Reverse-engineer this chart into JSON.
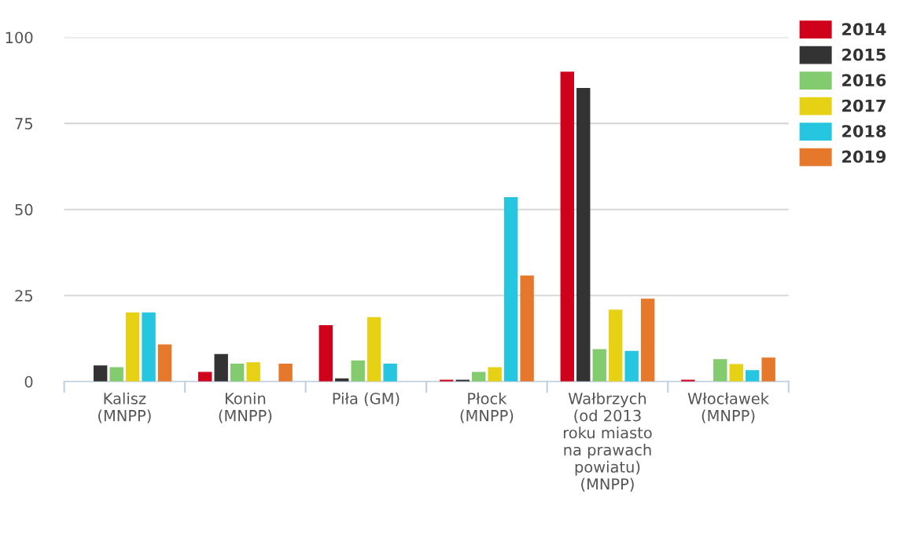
{
  "chart_data": {
    "type": "bar",
    "categories": [
      "Kalisz\n(MNPP)",
      "Konin\n(MNPP)",
      "Piła (GM)",
      "Płock\n(MNPP)",
      "Wałbrzych\n(od 2013\nroku miasto\nna prawach\npowiatu)\n(MNPP)",
      "Włocławek\n(MNPP)"
    ],
    "series": [
      {
        "name": "2014",
        "color": "#d0021b",
        "values": [
          null,
          2.8,
          16.4,
          0.5,
          90.0,
          0.5
        ]
      },
      {
        "name": "2015",
        "color": "#333333",
        "values": [
          4.7,
          8.0,
          0.9,
          0.5,
          85.3,
          null
        ]
      },
      {
        "name": "2016",
        "color": "#82cb6e",
        "values": [
          4.2,
          5.2,
          6.1,
          2.8,
          9.4,
          6.5
        ]
      },
      {
        "name": "2017",
        "color": "#e6d114",
        "values": [
          20.1,
          5.6,
          18.7,
          4.2,
          20.9,
          5.1
        ]
      },
      {
        "name": "2018",
        "color": "#26c5e0",
        "values": [
          20.1,
          null,
          5.2,
          53.6,
          8.9,
          3.3
        ]
      },
      {
        "name": "2019",
        "color": "#e5782a",
        "values": [
          10.8,
          5.2,
          null,
          30.8,
          24.1,
          7.0
        ]
      }
    ],
    "ylim": [
      0,
      100
    ],
    "yticks": [
      0,
      25,
      50,
      75,
      100
    ],
    "grid": "y",
    "legend": "top right"
  }
}
